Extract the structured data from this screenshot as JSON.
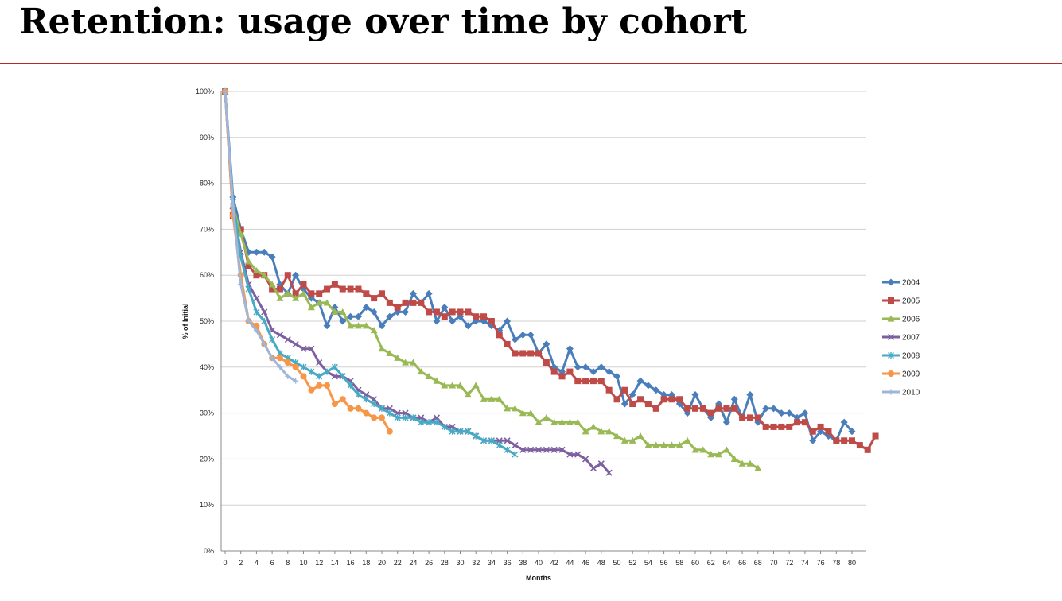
{
  "slide": {
    "title": "Retention: usage over time by cohort"
  },
  "colors": {
    "title_rule": "#b82828",
    "grid": "#d0d0d0"
  },
  "chart_data": {
    "type": "line",
    "xlabel": "Months",
    "ylabel": "% of Initial",
    "xlim": [
      0,
      81
    ],
    "ylim": [
      0,
      100
    ],
    "y_unit": "%",
    "x_ticks": [
      0,
      2,
      4,
      6,
      8,
      10,
      12,
      14,
      16,
      18,
      20,
      22,
      24,
      26,
      28,
      30,
      32,
      34,
      36,
      38,
      40,
      42,
      44,
      46,
      48,
      50,
      52,
      54,
      56,
      58,
      60,
      62,
      64,
      66,
      68,
      70,
      72,
      74,
      76,
      78,
      80
    ],
    "y_ticks": [
      0,
      10,
      20,
      30,
      40,
      50,
      60,
      70,
      80,
      90,
      100
    ],
    "y_tick_labels": [
      "0%",
      "10%",
      "20%",
      "30%",
      "40%",
      "50%",
      "60%",
      "70%",
      "80%",
      "90%",
      "100%"
    ],
    "grid": "horizontal",
    "legend_position": "right",
    "series": [
      {
        "name": "2004",
        "color": "#4a7ebb",
        "marker": "diamond",
        "values": [
          100,
          77,
          70,
          65,
          65,
          65,
          64,
          58,
          56,
          60,
          57,
          55,
          54,
          49,
          53,
          50,
          51,
          51,
          53,
          52,
          49,
          51,
          52,
          52,
          56,
          54,
          56,
          50,
          53,
          50,
          51,
          49,
          50,
          50,
          49,
          48,
          50,
          46,
          47,
          47,
          43,
          45,
          40,
          39,
          44,
          40,
          40,
          39,
          40,
          39,
          38,
          32,
          34,
          37,
          36,
          35,
          34,
          34,
          32,
          30,
          34,
          31,
          29,
          32,
          28,
          33,
          29,
          34,
          28,
          31,
          31,
          30,
          30,
          29,
          30,
          24,
          26,
          25,
          24,
          28,
          26
        ]
      },
      {
        "name": "2005",
        "color": "#be4b48",
        "marker": "square",
        "values": [
          100,
          73,
          70,
          62,
          60,
          60,
          57,
          57,
          60,
          56,
          58,
          56,
          56,
          57,
          58,
          57,
          57,
          57,
          56,
          55,
          56,
          54,
          53,
          54,
          54,
          54,
          52,
          52,
          51,
          52,
          52,
          52,
          51,
          51,
          50,
          47,
          45,
          43,
          43,
          43,
          43,
          41,
          39,
          38,
          39,
          37,
          37,
          37,
          37,
          35,
          33,
          35,
          32,
          33,
          32,
          31,
          33,
          33,
          33,
          31,
          31,
          31,
          30,
          31,
          31,
          31,
          29,
          29,
          29,
          27,
          27,
          27,
          27,
          28,
          28,
          26,
          27,
          26,
          24,
          24,
          24,
          23,
          22,
          25
        ]
      },
      {
        "name": "2006",
        "color": "#98b954",
        "marker": "triangle",
        "values": [
          100,
          75,
          69,
          63,
          61,
          60,
          58,
          55,
          56,
          55,
          56,
          53,
          54,
          54,
          52,
          52,
          49,
          49,
          49,
          48,
          44,
          43,
          42,
          41,
          41,
          39,
          38,
          37,
          36,
          36,
          36,
          34,
          36,
          33,
          33,
          33,
          31,
          31,
          30,
          30,
          28,
          29,
          28,
          28,
          28,
          28,
          26,
          27,
          26,
          26,
          25,
          24,
          24,
          25,
          23,
          23,
          23,
          23,
          23,
          24,
          22,
          22,
          21,
          21,
          22,
          20,
          19,
          19,
          18
        ]
      },
      {
        "name": "2007",
        "color": "#7d60a0",
        "marker": "x",
        "values": [
          100,
          75,
          65,
          58,
          55,
          52,
          48,
          47,
          46,
          45,
          44,
          44,
          41,
          39,
          38,
          38,
          37,
          35,
          34,
          33,
          31,
          31,
          30,
          30,
          29,
          29,
          28,
          29,
          27,
          27,
          26,
          26,
          25,
          24,
          24,
          24,
          24,
          23,
          22,
          22,
          22,
          22,
          22,
          22,
          21,
          21,
          20,
          18,
          19,
          17
        ]
      },
      {
        "name": "2008",
        "color": "#46aac5",
        "marker": "star",
        "values": [
          100,
          76,
          64,
          57,
          52,
          50,
          46,
          43,
          42,
          41,
          40,
          39,
          38,
          39,
          40,
          38,
          36,
          34,
          33,
          32,
          31,
          30,
          29,
          29,
          29,
          28,
          28,
          28,
          27,
          26,
          26,
          26,
          25,
          24,
          24,
          23,
          22,
          21
        ]
      },
      {
        "name": "2009",
        "color": "#f79646",
        "marker": "circle",
        "values": [
          100,
          73,
          60,
          50,
          49,
          45,
          42,
          42,
          41,
          40,
          38,
          35,
          36,
          36,
          32,
          33,
          31,
          31,
          30,
          29,
          29,
          26
        ]
      },
      {
        "name": "2010",
        "color": "#9fb5d9",
        "marker": "plus",
        "values": [
          100,
          75,
          58,
          50,
          48,
          45,
          42,
          40,
          38,
          37
        ]
      }
    ]
  }
}
